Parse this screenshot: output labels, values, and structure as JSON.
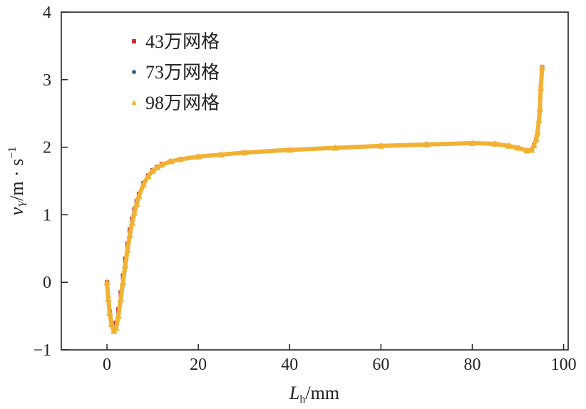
{
  "chart_data": {
    "type": "line",
    "title": "",
    "xlabel": "L_h/mm",
    "ylabel": "v_Y/m · s⁻¹",
    "xlabel_parts": {
      "main": "L",
      "sub": "h",
      "rest": "/mm"
    },
    "ylabel_parts": {
      "main": "v",
      "sub": "Y",
      "rest": "/m · s",
      "sup": "−1"
    },
    "xlim": [
      -10,
      101
    ],
    "ylim": [
      -1,
      4
    ],
    "xticks": [
      0,
      20,
      40,
      60,
      80,
      100
    ],
    "yticks": [
      -1,
      0,
      1,
      2,
      3,
      4
    ],
    "xtick_labels": [
      "0",
      "20",
      "40",
      "60",
      "80",
      "100"
    ],
    "ytick_labels": [
      "−1",
      "0",
      "1",
      "2",
      "3",
      "4"
    ],
    "grid": false,
    "legend_position": "top-left",
    "x": [
      0,
      0.3,
      0.6,
      1,
      1.5,
      2,
      2.5,
      3,
      3.5,
      4,
      4.5,
      5,
      5.5,
      6,
      6.5,
      7,
      8,
      9,
      10,
      11,
      12,
      14,
      16,
      20,
      25,
      30,
      40,
      50,
      60,
      70,
      80,
      85,
      88,
      90,
      92,
      93,
      93.5,
      94,
      94.3,
      94.6,
      94.8,
      95,
      95.3
    ],
    "series": [
      {
        "name": "43万网格",
        "marker": "square",
        "color": "#d62a2a",
        "values": [
          0,
          -0.24,
          -0.43,
          -0.6,
          -0.68,
          -0.6,
          -0.4,
          -0.15,
          0.1,
          0.35,
          0.57,
          0.78,
          0.94,
          1.08,
          1.2,
          1.31,
          1.47,
          1.58,
          1.66,
          1.71,
          1.75,
          1.79,
          1.82,
          1.86,
          1.89,
          1.92,
          1.96,
          1.99,
          2.02,
          2.04,
          2.06,
          2.05,
          2.02,
          1.99,
          1.95,
          1.96,
          2.03,
          2.12,
          2.22,
          2.4,
          2.57,
          2.88,
          3.18
        ]
      },
      {
        "name": "73万网格",
        "marker": "circle",
        "color": "#3c6496",
        "values": [
          0,
          -0.25,
          -0.44,
          -0.61,
          -0.7,
          -0.64,
          -0.45,
          -0.2,
          0.05,
          0.3,
          0.52,
          0.74,
          0.91,
          1.05,
          1.18,
          1.29,
          1.46,
          1.57,
          1.65,
          1.7,
          1.74,
          1.79,
          1.82,
          1.86,
          1.89,
          1.92,
          1.96,
          1.99,
          2.02,
          2.04,
          2.06,
          2.05,
          2.02,
          1.99,
          1.95,
          1.96,
          2.03,
          2.12,
          2.22,
          2.4,
          2.57,
          2.88,
          3.18
        ]
      },
      {
        "name": "98万网格",
        "marker": "triangle",
        "color": "#f2b134",
        "values": [
          0,
          -0.25,
          -0.45,
          -0.62,
          -0.72,
          -0.68,
          -0.5,
          -0.25,
          0.0,
          0.25,
          0.48,
          0.7,
          0.88,
          1.03,
          1.16,
          1.28,
          1.45,
          1.57,
          1.65,
          1.7,
          1.74,
          1.79,
          1.82,
          1.86,
          1.89,
          1.92,
          1.96,
          1.99,
          2.02,
          2.04,
          2.06,
          2.05,
          2.02,
          1.99,
          1.95,
          1.96,
          2.03,
          2.12,
          2.22,
          2.4,
          2.57,
          2.88,
          3.18
        ]
      }
    ]
  }
}
